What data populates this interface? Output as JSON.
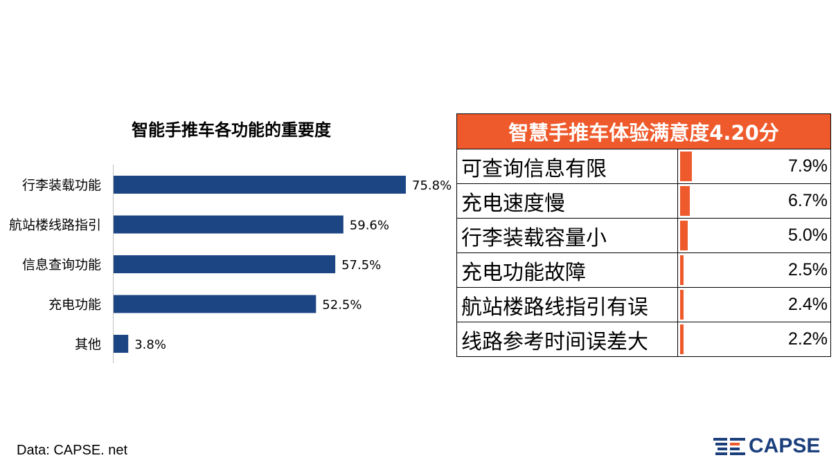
{
  "chart_data": [
    {
      "type": "bar",
      "orientation": "horizontal",
      "title": "智能手推车各功能的重要度",
      "categories": [
        "行李装载功能",
        "航站楼线路指引",
        "信息查询功能",
        "充电功能",
        "其他"
      ],
      "values": [
        75.8,
        59.6,
        57.5,
        52.5,
        3.8
      ],
      "value_labels": [
        "75.8%",
        "59.6%",
        "57.5%",
        "52.5%",
        "3.8%"
      ],
      "xlim": [
        0,
        80
      ],
      "grid": false,
      "bar_color": "#1c4584"
    },
    {
      "type": "table",
      "title": "智慧手推车体验满意度4.20分",
      "rows": [
        {
          "label": "可查询信息有限",
          "value": 7.9,
          "value_label": "7.9%"
        },
        {
          "label": "充电速度慢",
          "value": 6.7,
          "value_label": "6.7%"
        },
        {
          "label": "行李装载容量小",
          "value": 5.0,
          "value_label": "5.0%"
        },
        {
          "label": "充电功能故障",
          "value": 2.5,
          "value_label": "2.5%"
        },
        {
          "label": "航站楼路线指引有误",
          "value": 2.4,
          "value_label": "2.4%"
        },
        {
          "label": "线路参考时间误差大",
          "value": 2.2,
          "value_label": "2.2%"
        }
      ],
      "bar_max": 100,
      "bar_color": "#ee5a2b",
      "header_color": "#ee5a2b"
    }
  ],
  "footer": {
    "source": "Data: CAPSE. net",
    "logo_text": "CAPSE",
    "logo_icon": "capse-stripes-icon",
    "logo_color": "#1b3f7c",
    "logo_accent": "#ee5a2b"
  }
}
